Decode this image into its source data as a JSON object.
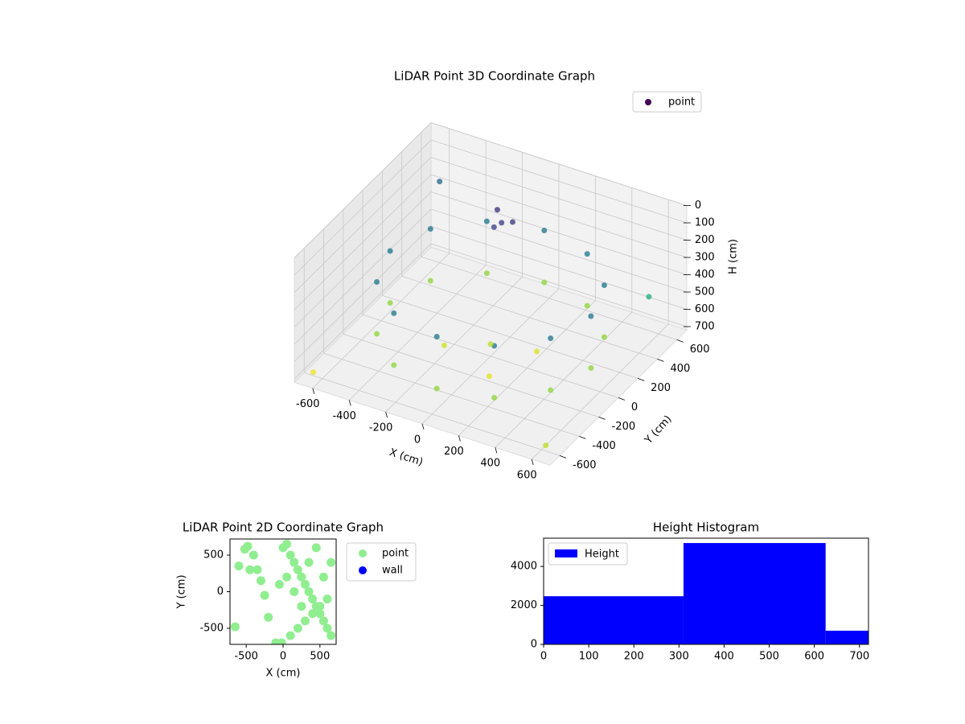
{
  "chart_data": [
    {
      "type": "scatter3d",
      "title": "LiDAR Point 3D Coordinate Graph",
      "xlabel": "X (cm)",
      "ylabel": "Y (cm)",
      "zlabel": "H (cm)",
      "colormap": "viridis",
      "legend": "upper right",
      "grid": true,
      "zinverted": true,
      "xlim": [
        -700,
        700
      ],
      "ylim": [
        -700,
        700
      ],
      "zlim": [
        0,
        720
      ],
      "xticks": [
        -600,
        -400,
        -200,
        0,
        200,
        400,
        600
      ],
      "yticks": [
        -600,
        -400,
        -200,
        0,
        200,
        400,
        600
      ],
      "zticks": [
        0,
        100,
        200,
        300,
        400,
        500,
        600,
        700
      ],
      "series": [
        {
          "name": "point",
          "x": [
            550,
            476,
            275,
            0,
            -275,
            -476,
            -550,
            -476,
            -275,
            0,
            275,
            476,
            550,
            476,
            275,
            0,
            -275,
            -476,
            -550,
            -476,
            -275,
            0,
            275,
            476,
            -150,
            -100,
            -50,
            -120,
            0,
            200,
            -200,
            100,
            -650,
            650,
            -600,
            600
          ],
          "y": [
            0,
            275,
            476,
            550,
            476,
            275,
            0,
            -275,
            -476,
            -550,
            -476,
            -275,
            0,
            275,
            476,
            550,
            476,
            275,
            0,
            -275,
            -476,
            -550,
            -476,
            -275,
            350,
            300,
            320,
            260,
            0,
            100,
            -100,
            -200,
            -600,
            -650,
            600,
            500
          ],
          "z": [
            300,
            300,
            300,
            300,
            300,
            300,
            300,
            300,
            300,
            300,
            300,
            300,
            600,
            600,
            600,
            600,
            600,
            600,
            600,
            600,
            600,
            600,
            600,
            600,
            120,
            150,
            140,
            160,
            650,
            680,
            670,
            690,
            700,
            650,
            250,
            450
          ]
        }
      ]
    },
    {
      "type": "scatter",
      "title": "LiDAR Point 2D Coordinate Graph",
      "xlabel": "X (cm)",
      "ylabel": "Y (cm)",
      "xlim": [
        -720,
        720
      ],
      "ylim": [
        -720,
        720
      ],
      "xticks": [
        -500,
        0,
        500
      ],
      "yticks": [
        -500,
        0,
        500
      ],
      "legend": "outside right",
      "series": [
        {
          "name": "point",
          "color": "#90ee90",
          "x": [
            -650,
            -520,
            -480,
            -400,
            -350,
            -300,
            -250,
            -200,
            -100,
            0,
            50,
            100,
            150,
            200,
            250,
            300,
            350,
            400,
            450,
            500,
            550,
            600,
            650,
            100,
            200,
            300,
            400,
            500,
            600,
            50,
            150,
            250,
            350,
            450,
            550,
            650,
            -20,
            -50,
            -600,
            -450
          ],
          "y": [
            -480,
            580,
            620,
            500,
            300,
            150,
            -50,
            -350,
            -700,
            600,
            650,
            500,
            400,
            300,
            200,
            100,
            0,
            -100,
            -200,
            -300,
            -400,
            -500,
            -600,
            -600,
            -500,
            -400,
            -300,
            -200,
            -100,
            200,
            0,
            -200,
            400,
            600,
            200,
            400,
            -700,
            100,
            350,
            300
          ]
        },
        {
          "name": "wall",
          "color": "#0000ff",
          "x": [],
          "y": []
        }
      ]
    },
    {
      "type": "histogram",
      "title": "Height Histogram",
      "name": "Height",
      "color": "#0000ff",
      "legend": "upper left",
      "bins": [
        0,
        310,
        625,
        720
      ],
      "counts": [
        2470,
        5200,
        700
      ],
      "xlim": [
        0,
        720
      ],
      "ylim": [
        0,
        5450
      ],
      "xticks": [
        0,
        100,
        200,
        300,
        400,
        500,
        600,
        700
      ],
      "yticks": [
        0,
        2000,
        4000
      ]
    }
  ]
}
